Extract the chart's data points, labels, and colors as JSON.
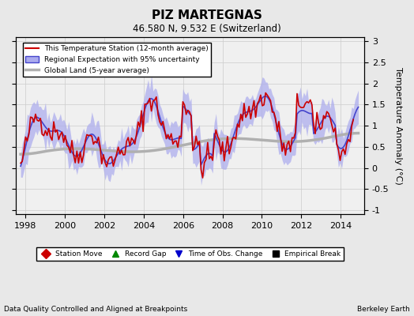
{
  "title": "PIZ MARTEGNAS",
  "subtitle": "46.580 N, 9.532 E (Switzerland)",
  "ylabel": "Temperature Anomaly (°C)",
  "footnote_left": "Data Quality Controlled and Aligned at Breakpoints",
  "footnote_right": "Berkeley Earth",
  "xlim": [
    1997.5,
    2015.2
  ],
  "ylim": [
    -1.1,
    3.1
  ],
  "yticks": [
    -1,
    -0.5,
    0,
    0.5,
    1,
    1.5,
    2,
    2.5,
    3
  ],
  "xticks": [
    1998,
    2000,
    2002,
    2004,
    2006,
    2008,
    2010,
    2012,
    2014
  ],
  "background_color": "#e8e8e8",
  "plot_background": "#f0f0f0",
  "regional_color": "#4444cc",
  "regional_fill": "#aaaaee",
  "station_color": "#cc0000",
  "global_color": "#b0b0b0",
  "legend_labels": [
    "This Temperature Station (12-month average)",
    "Regional Expectation with 95% uncertainty",
    "Global Land (5-year average)"
  ],
  "marker_legend": [
    {
      "label": "Station Move",
      "color": "#cc0000",
      "marker": "D"
    },
    {
      "label": "Record Gap",
      "color": "#008800",
      "marker": "^"
    },
    {
      "label": "Time of Obs. Change",
      "color": "#0000cc",
      "marker": "v"
    },
    {
      "label": "Empirical Break",
      "color": "#000000",
      "marker": "s"
    }
  ]
}
